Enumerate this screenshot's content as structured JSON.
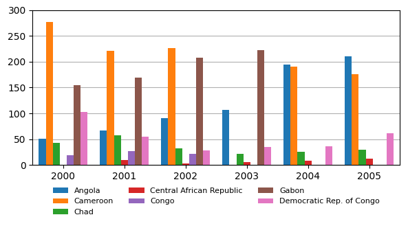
{
  "chart_data": {
    "type": "bar",
    "categories": [
      "2000",
      "2001",
      "2002",
      "2003",
      "2004",
      "2005"
    ],
    "series": [
      {
        "name": "Angola",
        "values": [
          51,
          67,
          91,
          107,
          194,
          210
        ]
      },
      {
        "name": "Cameroon",
        "values": [
          277,
          221,
          226,
          0,
          190,
          176
        ]
      },
      {
        "name": "Chad",
        "values": [
          43,
          57,
          32,
          21,
          26,
          29
        ]
      },
      {
        "name": "Central African Republic",
        "values": [
          0,
          9.9,
          2.9,
          5.7,
          8.2,
          12
        ]
      },
      {
        "name": "Congo",
        "values": [
          19,
          27,
          22,
          0,
          0,
          0
        ]
      },
      {
        "name": "Gabon",
        "values": [
          155,
          169,
          208,
          222,
          0,
          0
        ]
      },
      {
        "name": "Democratic Rep. of Congo",
        "values": [
          103,
          55,
          28,
          35,
          36,
          61
        ]
      }
    ],
    "ylim": [
      0,
      300
    ],
    "yticks": [
      0,
      50,
      100,
      150,
      200,
      250,
      300
    ],
    "grid": true,
    "legend": "upper center"
  }
}
